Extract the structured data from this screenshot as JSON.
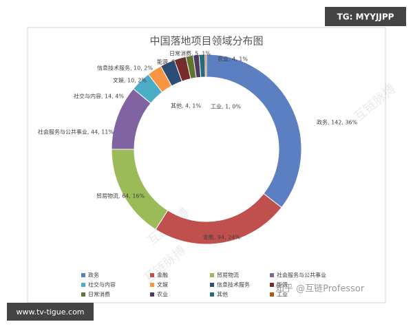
{
  "chart_data": {
    "type": "pie",
    "donut": true,
    "title": "中国落地项目领域分布图",
    "categories": [
      "政务",
      "金融",
      "贸易物流",
      "社会服务与公共事业",
      "社交与内容",
      "文娱",
      "信息技术服务",
      "能源",
      "日常消费",
      "农业",
      "其他",
      "工业"
    ],
    "values": [
      142,
      94,
      64,
      44,
      14,
      10,
      10,
      8,
      5,
      4,
      4,
      1
    ],
    "value_labels": [
      "政务, 142, 36%",
      "金融, 94, 24%",
      "贸易物流, 64, 16%",
      "社会服务与公共事业, 44, 11%",
      "社交与内容, 14, 4%",
      "文娱, 10, 2%",
      "信息技术服务, 10, 2%",
      "能源, 8, 2%",
      "日常消费, 5, 1%",
      "农业, 4, 1%",
      "其他, 4, 1%",
      "工业, 1, 0%"
    ],
    "colors": [
      "#5b7fc1",
      "#c0504d",
      "#9bbb59",
      "#8064a2",
      "#4bacc6",
      "#f79646",
      "#2c4d75",
      "#772c2a",
      "#5f7530",
      "#4d3b62",
      "#276a7c",
      "#b65708"
    ],
    "legend": "bottom"
  },
  "overlays": {
    "top_tag": "TG: MYYJJPP",
    "bottom_tag": "www.tv-tigue.com",
    "credit": "知乎 @互链Professor",
    "watermark": "互链脉搏"
  }
}
